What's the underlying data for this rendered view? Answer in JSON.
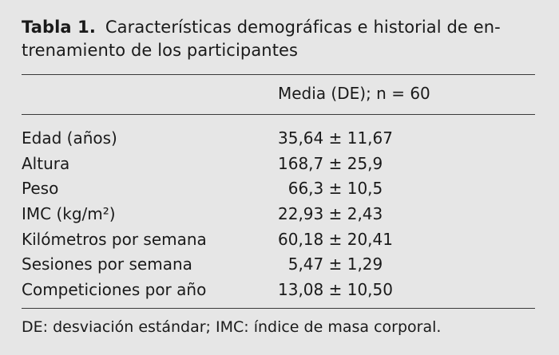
{
  "table": {
    "caption_label": "Tabla 1.",
    "caption_line1": "Características demográficas e historial de en-",
    "caption_line2": "trenamiento de los participantes",
    "column_header": "Media (DE); n = 60",
    "rows": [
      {
        "name": "Edad (años)",
        "value": "35,64 ± 11,67"
      },
      {
        "name": "Altura",
        "value": "168,7 ± 25,9"
      },
      {
        "name": "Peso",
        "value": "  66,3 ± 10,5"
      },
      {
        "name": "IMC (kg/m²)",
        "value": "22,93 ± 2,43"
      },
      {
        "name": "Kilómetros por semana",
        "value": "60,18 ± 20,41"
      },
      {
        "name": "Sesiones por semana",
        "value": "  5,47 ± 1,29"
      },
      {
        "name": "Competiciones por año",
        "value": "13,08 ± 10,50"
      }
    ],
    "footnote": "DE: desviación estándar; IMC: índice de masa corporal."
  }
}
